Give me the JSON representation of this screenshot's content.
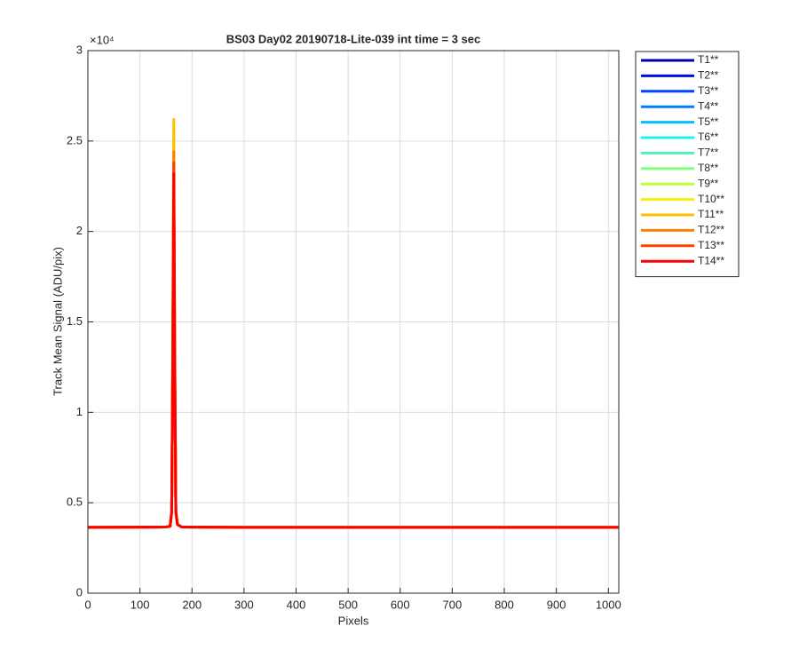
{
  "chart_data": {
    "type": "line",
    "title": "BS03 Day02 20190718-Lite-039 int time = 3 sec",
    "x_label": "Pixels",
    "y_label": "Track Mean Signal (ADU/pix)",
    "y_multiplier": "×10⁴",
    "x": [
      0,
      150,
      158,
      161,
      163,
      165,
      167,
      169,
      172,
      180,
      300,
      1020
    ],
    "series": [
      {
        "name": "T1**",
        "color": "#0000a8",
        "values": [
          0.364,
          0.366,
          0.37,
          0.45,
          1.2,
          2.3,
          1.2,
          0.45,
          0.38,
          0.366,
          0.364,
          0.364
        ]
      },
      {
        "name": "T2**",
        "color": "#0010dc",
        "values": [
          0.364,
          0.366,
          0.37,
          0.45,
          1.2,
          2.3,
          1.2,
          0.45,
          0.38,
          0.366,
          0.364,
          0.364
        ]
      },
      {
        "name": "T3**",
        "color": "#0044ff",
        "values": [
          0.364,
          0.366,
          0.37,
          0.45,
          1.2,
          2.3,
          1.2,
          0.45,
          0.38,
          0.366,
          0.364,
          0.364
        ]
      },
      {
        "name": "T4**",
        "color": "#0080ff",
        "values": [
          0.364,
          0.366,
          0.37,
          0.45,
          1.2,
          2.3,
          1.2,
          0.45,
          0.38,
          0.366,
          0.364,
          0.364
        ]
      },
      {
        "name": "T5**",
        "color": "#00c0ff",
        "values": [
          0.364,
          0.366,
          0.37,
          0.45,
          1.2,
          2.3,
          1.2,
          0.45,
          0.38,
          0.366,
          0.364,
          0.364
        ]
      },
      {
        "name": "T6**",
        "color": "#20f0f0",
        "values": [
          0.364,
          0.366,
          0.37,
          0.45,
          1.2,
          2.3,
          1.2,
          0.45,
          0.38,
          0.366,
          0.364,
          0.364
        ]
      },
      {
        "name": "T7**",
        "color": "#50f0c0",
        "values": [
          0.364,
          0.366,
          0.37,
          0.45,
          1.2,
          2.3,
          1.2,
          0.45,
          0.38,
          0.366,
          0.364,
          0.364
        ]
      },
      {
        "name": "T8**",
        "color": "#80ff80",
        "values": [
          0.364,
          0.366,
          0.37,
          0.45,
          1.2,
          2.3,
          1.2,
          0.45,
          0.38,
          0.366,
          0.364,
          0.364
        ]
      },
      {
        "name": "T9**",
        "color": "#c0ff40",
        "values": [
          0.364,
          0.366,
          0.37,
          0.45,
          1.2,
          2.3,
          1.2,
          0.45,
          0.38,
          0.366,
          0.364,
          0.364
        ]
      },
      {
        "name": "T10**",
        "color": "#f8f000",
        "values": [
          0.364,
          0.366,
          0.37,
          0.45,
          1.3,
          2.5,
          1.3,
          0.45,
          0.38,
          0.366,
          0.364,
          0.364
        ]
      },
      {
        "name": "T11**",
        "color": "#ffbf00",
        "values": [
          0.364,
          0.366,
          0.37,
          0.45,
          1.4,
          2.62,
          1.4,
          0.45,
          0.38,
          0.366,
          0.364,
          0.364
        ]
      },
      {
        "name": "T12**",
        "color": "#ff8000",
        "values": [
          0.364,
          0.366,
          0.37,
          0.45,
          1.3,
          2.44,
          1.3,
          0.45,
          0.38,
          0.366,
          0.364,
          0.364
        ]
      },
      {
        "name": "T13**",
        "color": "#ff4000",
        "values": [
          0.364,
          0.366,
          0.37,
          0.45,
          1.25,
          2.38,
          1.25,
          0.45,
          0.38,
          0.366,
          0.364,
          0.364
        ]
      },
      {
        "name": "T14**",
        "color": "#ff0000",
        "values": [
          0.364,
          0.366,
          0.37,
          0.45,
          1.2,
          2.32,
          1.2,
          0.45,
          0.38,
          0.366,
          0.364,
          0.364
        ]
      }
    ],
    "xlim": [
      0,
      1020
    ],
    "xticks": [
      0,
      100,
      200,
      300,
      400,
      500,
      600,
      700,
      800,
      900,
      1000
    ],
    "ylim": [
      0,
      3
    ],
    "yticks": [
      0,
      0.5,
      1,
      1.5,
      2,
      2.5,
      3
    ],
    "grid": true,
    "legend": "outside-top-right"
  }
}
